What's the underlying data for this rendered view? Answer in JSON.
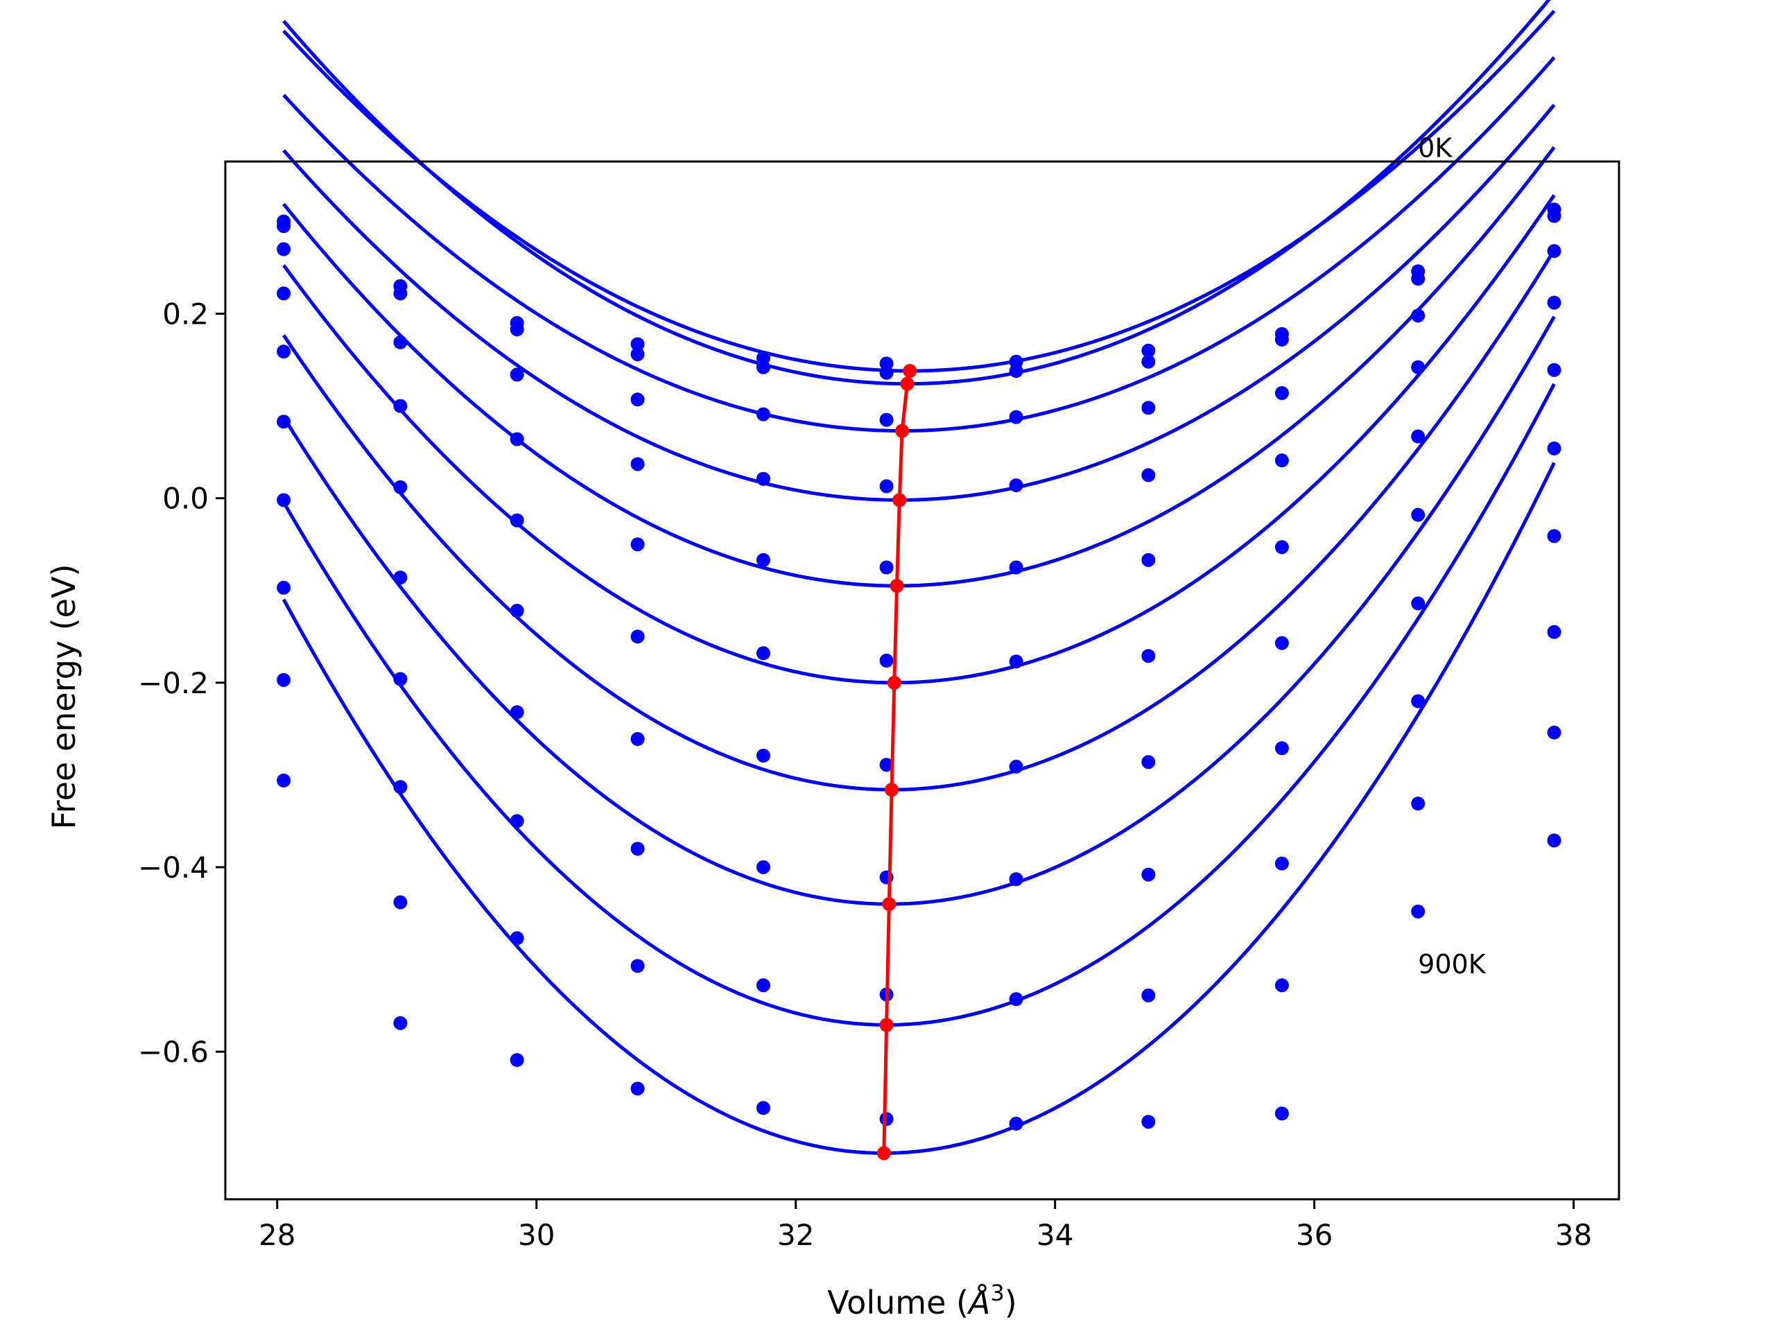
{
  "chart_data": {
    "type": "scatter",
    "xlabel": "Volume (",
    "xlabel_symbol": "Å",
    "xlabel_power": "3",
    "xlabel_close": ")",
    "ylabel": "Free energy (eV)",
    "xlim": [
      27.6,
      38.35
    ],
    "ylim": [
      -0.76,
      0.365
    ],
    "x_ticks": [
      28,
      30,
      32,
      34,
      36,
      38
    ],
    "x_tick_labels": [
      "28",
      "30",
      "32",
      "34",
      "36",
      "38"
    ],
    "y_ticks": [
      -0.6,
      -0.4,
      -0.2,
      0.0,
      0.2
    ],
    "y_tick_labels": [
      "−0.6",
      "−0.4",
      "−0.2",
      "0.0",
      "0.2"
    ],
    "annotations": [
      {
        "text": "0K",
        "x": 36.8,
        "y": 0.37
      },
      {
        "text": "900K",
        "x": 36.8,
        "y": -0.515
      }
    ],
    "point_color": "#0000ff",
    "curve_color": "#0000ff",
    "min_line_color": "#ff0000",
    "volumes": [
      28.05,
      28.95,
      29.85,
      30.78,
      31.75,
      32.7,
      33.7,
      34.72,
      35.75,
      36.8,
      37.85
    ],
    "series": [
      {
        "points": [
          0.3,
          0.23,
          0.19,
          0.167,
          0.152,
          0.146,
          0.148,
          0.16,
          0.178,
          0.246,
          0.313
        ],
        "curve": {
          "vmin": 32.88,
          "emin": 0.138,
          "k": 0.0158
        }
      },
      {
        "points": [
          0.295,
          0.222,
          0.183,
          0.156,
          0.142,
          0.136,
          0.138,
          0.148,
          0.172,
          0.238,
          0.306
        ],
        "curve": {
          "vmin": 32.86,
          "emin": 0.124,
          "k": 0.017
        }
      },
      {
        "points": [
          0.27,
          0.169,
          0.134,
          0.107,
          0.091,
          0.085,
          0.088,
          0.098,
          0.114,
          0.198,
          0.268
        ],
        "curve": {
          "vmin": 32.82,
          "emin": 0.073,
          "k": 0.016
        }
      },
      {
        "points": [
          0.222,
          0.1,
          0.064,
          0.037,
          0.021,
          0.013,
          0.014,
          0.025,
          0.041,
          0.142,
          0.212
        ],
        "curve": {
          "vmin": 32.8,
          "emin": -0.002,
          "k": 0.0168
        }
      },
      {
        "points": [
          0.159,
          0.012,
          -0.024,
          -0.05,
          -0.067,
          -0.075,
          -0.075,
          -0.067,
          -0.053,
          0.067,
          0.139
        ],
        "curve": {
          "vmin": 32.78,
          "emin": -0.095,
          "k": 0.0185
        }
      },
      {
        "points": [
          0.083,
          -0.086,
          -0.122,
          -0.15,
          -0.168,
          -0.176,
          -0.177,
          -0.171,
          -0.157,
          -0.018,
          0.054
        ],
        "curve": {
          "vmin": 32.76,
          "emin": -0.2,
          "k": 0.0204
        }
      },
      {
        "points": [
          -0.002,
          -0.196,
          -0.232,
          -0.261,
          -0.279,
          -0.289,
          -0.291,
          -0.286,
          -0.271,
          -0.114,
          -0.041
        ],
        "curve": {
          "vmin": 32.74,
          "emin": -0.316,
          "k": 0.0224
        }
      },
      {
        "points": [
          -0.097,
          -0.313,
          -0.35,
          -0.38,
          -0.4,
          -0.411,
          -0.413,
          -0.408,
          -0.396,
          -0.22,
          -0.145
        ],
        "curve": {
          "vmin": 32.72,
          "emin": -0.44,
          "k": 0.0242
        }
      },
      {
        "points": [
          -0.197,
          -0.438,
          -0.477,
          -0.507,
          -0.528,
          -0.538,
          -0.543,
          -0.539,
          -0.528,
          -0.331,
          -0.254
        ],
        "curve": {
          "vmin": 32.7,
          "emin": -0.571,
          "k": 0.0262
        }
      },
      {
        "points": [
          -0.306,
          -0.569,
          -0.609,
          -0.64,
          -0.661,
          -0.673,
          -0.678,
          -0.676,
          -0.667,
          -0.448,
          -0.371
        ],
        "curve": {
          "vmin": 32.68,
          "emin": -0.71,
          "k": 0.028
        }
      }
    ],
    "minima": [
      {
        "x": 32.88,
        "y": 0.138
      },
      {
        "x": 32.86,
        "y": 0.124
      },
      {
        "x": 32.82,
        "y": 0.073
      },
      {
        "x": 32.8,
        "y": -0.002
      },
      {
        "x": 32.78,
        "y": -0.095
      },
      {
        "x": 32.76,
        "y": -0.2
      },
      {
        "x": 32.74,
        "y": -0.316
      },
      {
        "x": 32.72,
        "y": -0.44
      },
      {
        "x": 32.7,
        "y": -0.571
      },
      {
        "x": 32.68,
        "y": -0.71
      }
    ]
  }
}
